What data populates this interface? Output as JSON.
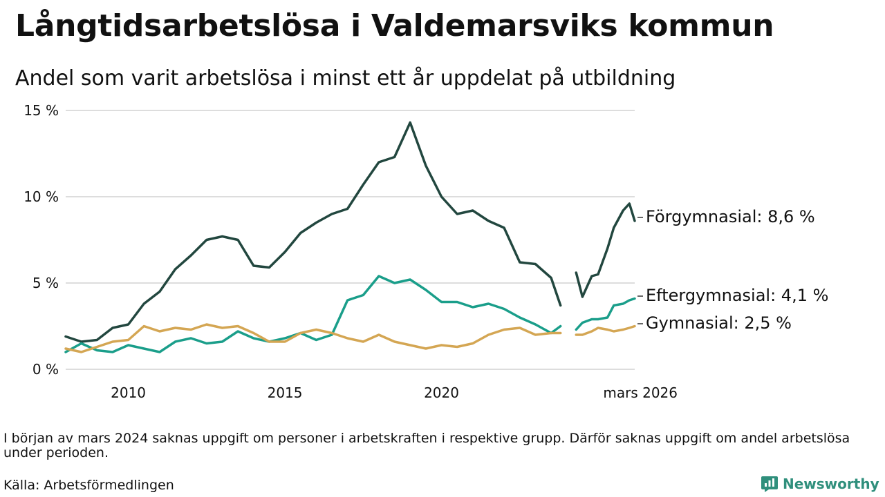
{
  "header": {
    "title": "Långtidsarbetslösa i Valdemarsviks kommun",
    "subtitle": "Andel som varit arbetslösa i minst ett år uppdelat på utbildning"
  },
  "footer": {
    "note": "I början av mars 2024 saknas uppgift om personer i arbetskraften i respektive grupp. Därför saknas uppgift om andel arbetslösa under perioden.",
    "source": "Källa: Arbetsförmedlingen",
    "brand": "Newsworthy"
  },
  "colors": {
    "forgymnasial": "#22473f",
    "eftergymnasial": "#1a9e8a",
    "gymnasial": "#d4a653",
    "grid": "#dddddd",
    "brand": "#2f8f7c"
  },
  "chart_data": {
    "type": "line",
    "title": "Långtidsarbetslösa i Valdemarsviks kommun",
    "subtitle": "Andel som varit arbetslösa i minst ett år uppdelat på utbildning",
    "xlabel": "",
    "ylabel": "",
    "xlim": [
      2008.0,
      2026.17
    ],
    "ylim": [
      0,
      15
    ],
    "grid": true,
    "x_ticks": [
      {
        "value": 2010,
        "label": "2010"
      },
      {
        "value": 2015,
        "label": "2015"
      },
      {
        "value": 2020,
        "label": "2020"
      },
      {
        "value": 2026.17,
        "label": "mars 2026"
      }
    ],
    "y_ticks": [
      {
        "value": 0,
        "label": "0 %"
      },
      {
        "value": 5,
        "label": "5 %"
      },
      {
        "value": 10,
        "label": "10 %"
      },
      {
        "value": 15,
        "label": "15 %"
      }
    ],
    "gap": [
      2023.85,
      2024.25
    ],
    "series": [
      {
        "name": "Förgymnasial",
        "label": "Förgymnasial: 8,6 %",
        "color": "#22473f",
        "x": [
          2008.0,
          2008.5,
          2009.0,
          2009.5,
          2010.0,
          2010.5,
          2011.0,
          2011.5,
          2012.0,
          2012.5,
          2013.0,
          2013.5,
          2014.0,
          2014.5,
          2015.0,
          2015.5,
          2016.0,
          2016.5,
          2017.0,
          2017.5,
          2018.0,
          2018.5,
          2019.0,
          2019.5,
          2020.0,
          2020.5,
          2021.0,
          2021.5,
          2022.0,
          2022.5,
          2023.0,
          2023.5,
          2023.8,
          2024.3,
          2024.5,
          2024.8,
          2025.0,
          2025.3,
          2025.5,
          2025.8,
          2026.0,
          2026.17
        ],
        "y": [
          1.9,
          1.6,
          1.7,
          2.4,
          2.6,
          3.8,
          4.5,
          5.8,
          6.6,
          7.5,
          7.7,
          7.5,
          6.0,
          5.9,
          6.8,
          7.9,
          8.5,
          9.0,
          9.3,
          10.7,
          12.0,
          12.3,
          14.3,
          11.8,
          10.0,
          9.0,
          9.2,
          8.6,
          8.2,
          6.2,
          6.1,
          5.3,
          3.7,
          5.6,
          4.2,
          5.4,
          5.5,
          7.0,
          8.2,
          9.2,
          9.6,
          8.6
        ]
      },
      {
        "name": "Eftergymnasial",
        "label": "Eftergymnasial: 4,1 %",
        "color": "#1a9e8a",
        "x": [
          2008.0,
          2008.5,
          2009.0,
          2009.5,
          2010.0,
          2010.5,
          2011.0,
          2011.5,
          2012.0,
          2012.5,
          2013.0,
          2013.5,
          2014.0,
          2014.5,
          2015.0,
          2015.5,
          2016.0,
          2016.5,
          2017.0,
          2017.5,
          2018.0,
          2018.5,
          2019.0,
          2019.5,
          2020.0,
          2020.5,
          2021.0,
          2021.5,
          2022.0,
          2022.5,
          2023.0,
          2023.5,
          2023.8,
          2024.3,
          2024.5,
          2024.8,
          2025.0,
          2025.3,
          2025.5,
          2025.8,
          2026.0,
          2026.17
        ],
        "y": [
          1.0,
          1.5,
          1.1,
          1.0,
          1.4,
          1.2,
          1.0,
          1.6,
          1.8,
          1.5,
          1.6,
          2.2,
          1.8,
          1.6,
          1.8,
          2.1,
          1.7,
          2.0,
          4.0,
          4.3,
          5.4,
          5.0,
          5.2,
          4.6,
          3.9,
          3.9,
          3.6,
          3.8,
          3.5,
          3.0,
          2.6,
          2.1,
          2.5,
          2.3,
          2.7,
          2.9,
          2.9,
          3.0,
          3.7,
          3.8,
          4.0,
          4.1
        ]
      },
      {
        "name": "Gymnasial",
        "label": "Gymnasial: 2,5 %",
        "color": "#d4a653",
        "x": [
          2008.0,
          2008.5,
          2009.0,
          2009.5,
          2010.0,
          2010.5,
          2011.0,
          2011.5,
          2012.0,
          2012.5,
          2013.0,
          2013.5,
          2014.0,
          2014.5,
          2015.0,
          2015.5,
          2016.0,
          2016.5,
          2017.0,
          2017.5,
          2018.0,
          2018.5,
          2019.0,
          2019.5,
          2020.0,
          2020.5,
          2021.0,
          2021.5,
          2022.0,
          2022.5,
          2023.0,
          2023.5,
          2023.8,
          2024.3,
          2024.5,
          2024.8,
          2025.0,
          2025.3,
          2025.5,
          2025.8,
          2026.0,
          2026.17
        ],
        "y": [
          1.2,
          1.0,
          1.3,
          1.6,
          1.7,
          2.5,
          2.2,
          2.4,
          2.3,
          2.6,
          2.4,
          2.5,
          2.1,
          1.6,
          1.6,
          2.1,
          2.3,
          2.1,
          1.8,
          1.6,
          2.0,
          1.6,
          1.4,
          1.2,
          1.4,
          1.3,
          1.5,
          2.0,
          2.3,
          2.4,
          2.0,
          2.1,
          2.1,
          2.0,
          2.0,
          2.2,
          2.4,
          2.3,
          2.2,
          2.3,
          2.4,
          2.5
        ]
      }
    ]
  }
}
